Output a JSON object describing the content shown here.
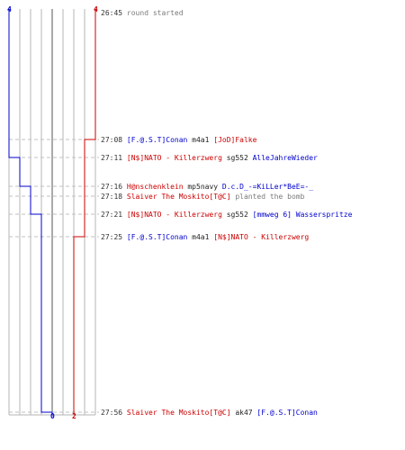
{
  "colors": {
    "team_blue": "#0000cc",
    "team_red": "#cc0000",
    "grid": "#b4b4b4",
    "dash": "#c0c0c0",
    "axis": "#555555"
  },
  "scores": {
    "blue_start": "4",
    "red_start": "4",
    "blue_end": "0",
    "red_end": "2"
  },
  "events": [
    {
      "time": "26:45",
      "parts": [
        {
          "text": "round started",
          "style": "gray"
        }
      ]
    },
    {
      "time": "27:08",
      "parts": [
        {
          "text": "[F.@.S.T]Conan",
          "style": "blue"
        },
        {
          "text": " m4a1 ",
          "style": "black"
        },
        {
          "text": "[JoD]Falke",
          "style": "red"
        }
      ]
    },
    {
      "time": "27:11",
      "parts": [
        {
          "text": "[N$]NATO - Killerzwerg",
          "style": "red"
        },
        {
          "text": " sg552 ",
          "style": "black"
        },
        {
          "text": "AlleJahreWieder",
          "style": "blue"
        }
      ]
    },
    {
      "time": "27:16",
      "parts": [
        {
          "text": "H@nschenklein",
          "style": "red"
        },
        {
          "text": " mp5navy ",
          "style": "black"
        },
        {
          "text": "D.c.D_-=KiLLer*BeE=-_",
          "style": "blue"
        }
      ]
    },
    {
      "time": "27:18",
      "parts": [
        {
          "text": "Slaiver The Moskito[T@C]",
          "style": "red"
        },
        {
          "text": " planted the bomb",
          "style": "gray"
        }
      ]
    },
    {
      "time": "27:21",
      "parts": [
        {
          "text": "[N$]NATO - Killerzwerg",
          "style": "red"
        },
        {
          "text": " sg552 ",
          "style": "black"
        },
        {
          "text": "[mmweg 6] Wasserspritze",
          "style": "blue"
        }
      ]
    },
    {
      "time": "27:25",
      "parts": [
        {
          "text": "[F.@.S.T]Conan",
          "style": "blue"
        },
        {
          "text": " m4a1 ",
          "style": "black"
        },
        {
          "text": "[N$]NATO - Killerzwerg",
          "style": "red"
        }
      ]
    },
    {
      "time": "27:56",
      "parts": [
        {
          "text": "Slaiver The Moskito[T@C]",
          "style": "red"
        },
        {
          "text": " ak47 ",
          "style": "black"
        },
        {
          "text": "[F.@.S.T]Conan",
          "style": "blue"
        }
      ]
    }
  ],
  "chart_data": {
    "type": "line",
    "series": [
      {
        "values": [
          4,
          4,
          3,
          2,
          2,
          1,
          1,
          0
        ]
      },
      {
        "values": [
          4,
          3,
          3,
          3,
          3,
          3,
          2,
          2
        ]
      }
    ],
    "ylim": [
      0,
      4
    ]
  }
}
